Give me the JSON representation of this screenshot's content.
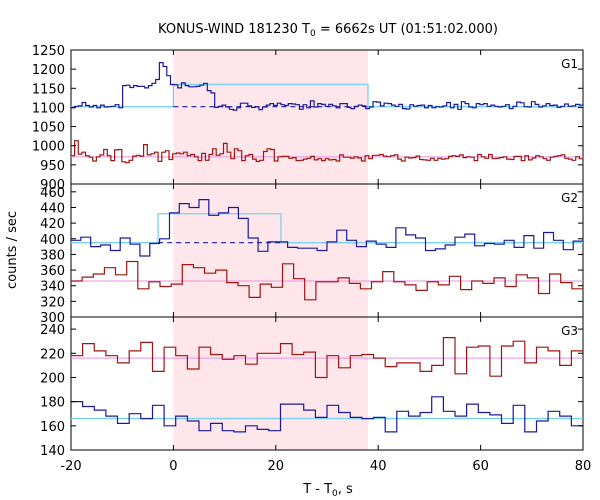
{
  "chart_data": {
    "type": "line",
    "title": {
      "main": "KONUS-WIND 181230 T",
      "sub": "0",
      "rest": " = 6662s UT (01:51:02.000)"
    },
    "xlabel": {
      "main": "T - T",
      "sub": "0",
      "rest": ", s"
    },
    "ylabel": "counts / sec",
    "xlim": [
      -20,
      80
    ],
    "xticks": [
      -20,
      0,
      20,
      40,
      60,
      80
    ],
    "highlight_interval": [
      0,
      38
    ],
    "colors": {
      "highlight": "#ffe6ea",
      "source": "#1a1aa0",
      "background_curve": "#a01414",
      "fit": "#7ad0f0",
      "bg_level": "#e890e0",
      "bg_dash": "#1a1aa0"
    },
    "panels": [
      {
        "label": "G1",
        "ylim": [
          900,
          1250
        ],
        "yticks": [
          900,
          950,
          1000,
          1050,
          1100,
          1150,
          1200,
          1250
        ],
        "step_width": 2.944,
        "x_start": -20,
        "curve_a": [
          1099,
          1103,
          1104,
          1113,
          1105,
          1101,
          1105,
          1099,
          1106,
          1101,
          1102,
          1103,
          1107,
          1099,
          1157,
          1158,
          1152,
          1157,
          1155,
          1155,
          1151,
          1157,
          1163,
          1173,
          1217,
          1207,
          1183,
          1160,
          1159,
          1151,
          1164,
          1157,
          1154,
          1154,
          1155,
          1158,
          1163,
          1144,
          1138,
          1100,
          1103,
          1106,
          1101,
          1095,
          1093,
          1099,
          1111,
          1111,
          1104,
          1100,
          1102,
          1094,
          1101,
          1106,
          1110,
          1105,
          1111,
          1107,
          1105,
          1110,
          1109,
          1107,
          1095,
          1107,
          1099,
          1117,
          1101,
          1110,
          1108,
          1103,
          1108,
          1104,
          1099,
          1110,
          1110,
          1100,
          1097,
          1103,
          1106,
          1104,
          1097,
          1101,
          1115,
          1114,
          1104,
          1111,
          1110,
          1106,
          1103,
          1108,
          1097,
          1096,
          1107,
          1103,
          1105,
          1106,
          1099,
          1105,
          1099,
          1102,
          1101,
          1104,
          1113,
          1099,
          1108,
          1095,
          1115,
          1110,
          1101,
          1099,
          1110,
          1107,
          1110,
          1103,
          1106,
          1103,
          1101,
          1103,
          1107,
          1097,
          1103,
          1114,
          1112,
          1102,
          1101,
          1115,
          1108,
          1101,
          1104,
          1110,
          1105,
          1106,
          1100,
          1103,
          1109,
          1103,
          1104,
          1108,
          1106
        ],
        "curve_b": [
          974,
          1013,
          978,
          983,
          974,
          970,
          960,
          971,
          976,
          990,
          974,
          961,
          989,
          990,
          958,
          956,
          962,
          973,
          975,
          973,
          1003,
          976,
          979,
          983,
          959,
          983,
          987,
          964,
          979,
          981,
          979,
          983,
          974,
          977,
          971,
          961,
          980,
          962,
          977,
          992,
          975,
          979,
          1006,
          983,
          966,
          992,
          987,
          961,
          974,
          977,
          965,
          959,
          962,
          985,
          992,
          990,
          960,
          971,
          972,
          972,
          967,
          969,
          961,
          962,
          965,
          967,
          972,
          963,
          966,
          961,
          966,
          963,
          964,
          960,
          976,
          970,
          970,
          967,
          971,
          968,
          960,
          974,
          966,
          975,
          975,
          977,
          973,
          971,
          974,
          976,
          965,
          960,
          970,
          968,
          969,
          973,
          964,
          963,
          962,
          967,
          962,
          967,
          965,
          966,
          972,
          974,
          972,
          976,
          969,
          971,
          970,
          961,
          977,
          971,
          967,
          977,
          966,
          967,
          969,
          971,
          965,
          964,
          972,
          972,
          961,
          974,
          963,
          968,
          974,
          971,
          966,
          962,
          970,
          972,
          974,
          976,
          967,
          965,
          962,
          971,
          966
        ],
        "fit_level": 1102,
        "fit_peak": 1160,
        "fit_peak_interval": [
          0,
          38
        ],
        "bg_level": 971
      },
      {
        "label": "G2",
        "ylim": [
          300,
          470
        ],
        "yticks": [
          300,
          320,
          340,
          360,
          380,
          400,
          420,
          440,
          460
        ],
        "curve_a": [
          398,
          402,
          390,
          392,
          385,
          401,
          393,
          378,
          394,
          400,
          433,
          445,
          440,
          450,
          430,
          433,
          440,
          426,
          401,
          384,
          396,
          396,
          389,
          388,
          388,
          385,
          396,
          411,
          398,
          390,
          397,
          393,
          389,
          414,
          405,
          401,
          385,
          387,
          392,
          402,
          406,
          391,
          394,
          393,
          398,
          389,
          404,
          388,
          408,
          398,
          386,
          397
        ],
        "curve_b": [
          346,
          351,
          355,
          363,
          354,
          371,
          336,
          345,
          339,
          342,
          367,
          363,
          356,
          360,
          344,
          340,
          325,
          342,
          338,
          368,
          349,
          322,
          345,
          345,
          350,
          343,
          336,
          345,
          358,
          345,
          341,
          334,
          345,
          341,
          352,
          335,
          346,
          343,
          350,
          339,
          354,
          350,
          330,
          355,
          344,
          336
        ],
        "fit_level": 395,
        "fit_peak": 432,
        "fit_peak_interval": [
          -3,
          21
        ],
        "bg_level": 346
      },
      {
        "label": "G3",
        "ylim": [
          140,
          250
        ],
        "yticks": [
          140,
          160,
          180,
          200,
          220,
          240
        ],
        "curve_a": [
          218,
          228,
          222,
          218,
          212,
          222,
          229,
          205,
          225,
          218,
          207,
          225,
          219,
          215,
          218,
          211,
          220,
          220,
          228,
          219,
          221,
          200,
          218,
          208,
          218,
          219,
          216,
          209,
          212,
          212,
          205,
          210,
          233,
          203,
          225,
          226,
          201,
          226,
          230,
          212,
          225,
          222,
          210,
          222
        ],
        "curve_b": [
          180,
          176,
          173,
          168,
          162,
          170,
          166,
          177,
          160,
          168,
          164,
          156,
          162,
          156,
          155,
          160,
          157,
          156,
          178,
          178,
          173,
          167,
          177,
          171,
          167,
          166,
          167,
          155,
          172,
          168,
          171,
          184,
          172,
          168,
          178,
          171,
          169,
          162,
          177,
          155,
          164,
          172,
          168,
          160
        ],
        "fit_level": 166,
        "bg_level": 216
      }
    ]
  }
}
